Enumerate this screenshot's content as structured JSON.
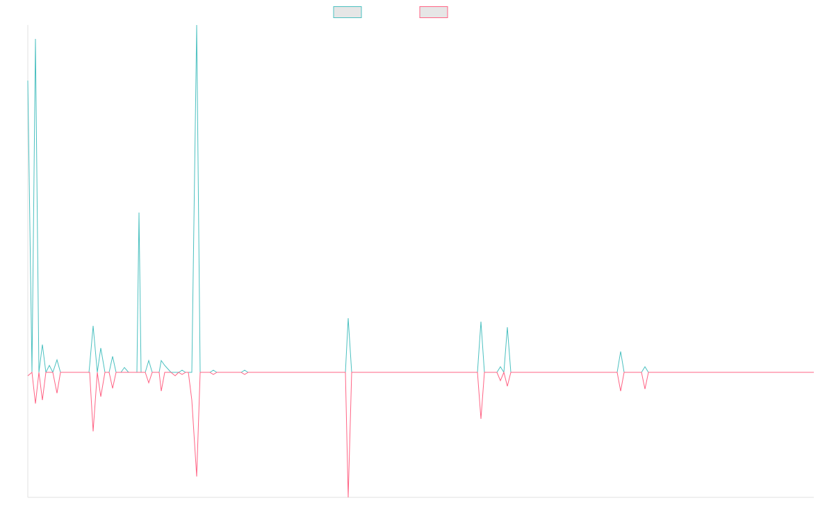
{
  "chart_data": {
    "type": "line",
    "x": [
      0,
      6,
      11,
      16,
      21,
      26,
      31,
      36,
      42,
      47,
      88,
      89,
      94,
      100,
      105,
      111,
      117,
      122,
      127,
      134,
      139,
      145,
      155,
      157,
      160,
      163,
      169,
      174,
      179,
      189,
      192,
      197,
      206,
      212,
      217,
      222,
      227,
      231,
      236,
      243,
      248,
      262,
      267,
      272,
      307,
      312,
      317,
      457,
      461,
      466,
      647,
      652,
      657,
      675,
      680,
      685,
      690,
      695,
      848,
      853,
      858,
      883,
      888,
      893,
      1131
    ],
    "xlim": [
      0,
      1131
    ],
    "ylim": [
      -36,
      100
    ],
    "series": [
      {
        "color": "#4bc0c0",
        "values": [
          84,
          0,
          96,
          0,
          8,
          0,
          2,
          0,
          3.6,
          0,
          0,
          2,
          13.4,
          0,
          7,
          0,
          0,
          4.6,
          0,
          0,
          1.4,
          0,
          0,
          0,
          46,
          0,
          0,
          3.4,
          0,
          0,
          3.4,
          2,
          0,
          0,
          0,
          0.6,
          0,
          0,
          0,
          100,
          0,
          0,
          0.6,
          0,
          0,
          0.6,
          0,
          0,
          15.6,
          0,
          0,
          14.6,
          0,
          0,
          1.6,
          0,
          13,
          0,
          0,
          6,
          0,
          0,
          1.6,
          0,
          0
        ]
      },
      {
        "color": "#ff6384",
        "values": [
          -1,
          0,
          -9,
          0,
          -8,
          0,
          0,
          0,
          -6,
          0,
          0,
          0,
          -17,
          0,
          -7,
          0,
          0,
          -4.6,
          0,
          0,
          0,
          0,
          0,
          0,
          0,
          0,
          0,
          -3,
          0,
          0,
          -5.4,
          0,
          0,
          -1,
          0,
          -0.6,
          0,
          0,
          -8,
          -30,
          0,
          0,
          -0.6,
          0,
          0,
          -0.6,
          0,
          0,
          -36,
          0,
          0,
          -13.4,
          0,
          0,
          -2.4,
          0,
          -4,
          0,
          0,
          -5.4,
          0,
          0,
          -4.8,
          0,
          0
        ]
      }
    ]
  }
}
